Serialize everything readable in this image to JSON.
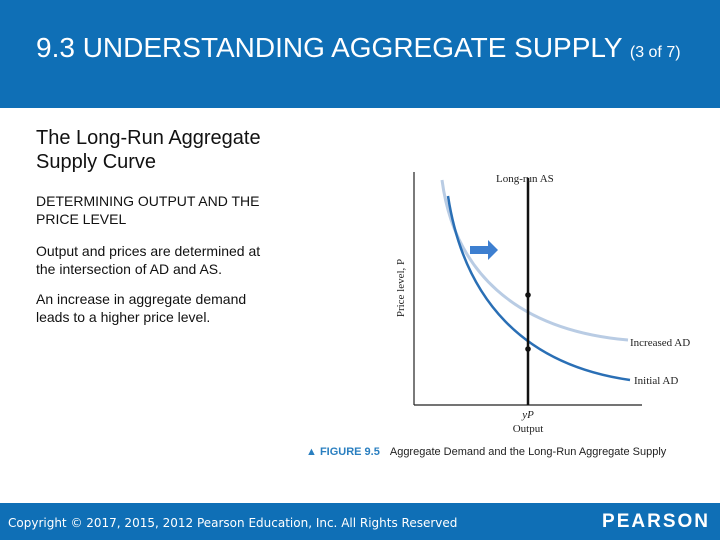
{
  "header": {
    "title_main": "9.3 UNDERSTANDING AGGREGATE SUPPLY",
    "title_suffix": "(3 of 7)"
  },
  "content": {
    "subtitle": "The Long-Run Aggregate Supply Curve",
    "section_heading": "DETERMINING OUTPUT AND THE PRICE LEVEL",
    "paragraph_1": "Output and prices are determined at the intersection of AD and AS.",
    "paragraph_2": "An increase in aggregate demand leads to a higher price level."
  },
  "diagram": {
    "y_axis_label": "Price level, P",
    "x_axis_label": "Output",
    "x_tick_label": "yP",
    "long_run_as_label": "Long-run AS",
    "increased_ad_label": "Increased AD",
    "initial_ad_label": "Initial AD",
    "arrow_icon": "right-arrow-icon",
    "colors": {
      "initial_ad": "#2a6fb5",
      "increased_ad": "#b9cce4",
      "arrow": "#3d7fd0",
      "axis": "#222222"
    }
  },
  "caption": {
    "figure_label": "▲ FIGURE 9.5",
    "figure_title": "Aggregate Demand and the Long-Run Aggregate Supply"
  },
  "footer": {
    "copyright": "Copyright © 2017, 2015, 2012 Pearson Education, Inc. All Rights Reserved",
    "logo": "PEARSON"
  }
}
